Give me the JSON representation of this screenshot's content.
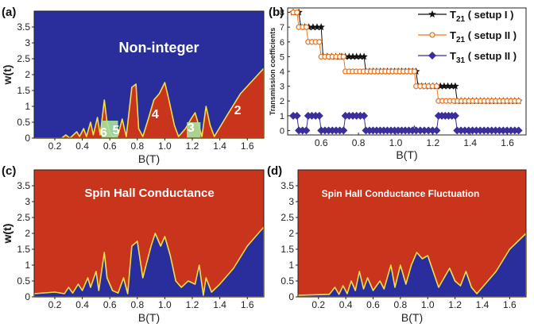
{
  "colors": {
    "blue": "#2a2e9c",
    "red": "#c9341c",
    "green": "#a7e3a1",
    "yellow": "#f4df4a",
    "black": "#111111",
    "orange": "#f07820",
    "purple": "#3a2f9a"
  },
  "chart_data": [
    {
      "type": "heatmap",
      "panel_label": "(a)",
      "annotation": "Non-integer",
      "xlabel": "B(T)",
      "ylabel": "w(t)",
      "xlim": [
        0.05,
        1.72
      ],
      "ylim": [
        0,
        4.0
      ],
      "xticks": [
        "0.2",
        "0.4",
        "0.6",
        "0.8",
        "1.0",
        "1.2",
        "1.4",
        "1.6"
      ],
      "yticks": [
        "0",
        "0.5",
        "1",
        "1.5",
        "2",
        "2.5",
        "3",
        "3.5"
      ],
      "region_labels": [
        {
          "text": "6",
          "x": 0.555,
          "y": 0.2
        },
        {
          "text": "5",
          "x": 0.645,
          "y": 0.28
        },
        {
          "text": "4",
          "x": 0.93,
          "y": 0.78
        },
        {
          "text": "3",
          "x": 1.19,
          "y": 0.35
        },
        {
          "text": "2",
          "x": 1.53,
          "y": 0.9
        }
      ],
      "boundary": [
        [
          0.05,
          0
        ],
        [
          0.25,
          0
        ],
        [
          0.28,
          0.1
        ],
        [
          0.31,
          0
        ],
        [
          0.36,
          0.2
        ],
        [
          0.38,
          0.05
        ],
        [
          0.41,
          0.3
        ],
        [
          0.43,
          0.05
        ],
        [
          0.46,
          0.5
        ],
        [
          0.48,
          0.1
        ],
        [
          0.51,
          0.65
        ],
        [
          0.53,
          0.1
        ],
        [
          0.56,
          1.2
        ],
        [
          0.58,
          0.5
        ],
        [
          0.6,
          0.2
        ],
        [
          0.62,
          0.05
        ],
        [
          0.66,
          0.1
        ],
        [
          0.69,
          0.6
        ],
        [
          0.72,
          0.05
        ],
        [
          0.76,
          1.6
        ],
        [
          0.79,
          1.7
        ],
        [
          0.81,
          0.3
        ],
        [
          0.84,
          0.05
        ],
        [
          0.88,
          0.6
        ],
        [
          0.92,
          1.2
        ],
        [
          0.96,
          1.4
        ],
        [
          1.0,
          1.75
        ],
        [
          1.03,
          1.2
        ],
        [
          1.07,
          0.4
        ],
        [
          1.1,
          0.05
        ],
        [
          1.15,
          0.3
        ],
        [
          1.19,
          0.6
        ],
        [
          1.22,
          0.8
        ],
        [
          1.27,
          0.05
        ],
        [
          1.3,
          1.0
        ],
        [
          1.33,
          0.4
        ],
        [
          1.36,
          0.05
        ],
        [
          1.45,
          0.7
        ],
        [
          1.55,
          1.4
        ],
        [
          1.72,
          2.2
        ]
      ]
    },
    {
      "type": "line",
      "panel_label": "(b)",
      "xlabel": "B(T)",
      "ylabel": "Transmission coefficients",
      "xlim": [
        0.42,
        1.7
      ],
      "ylim": [
        -0.3,
        8.3
      ],
      "xticks": [
        "0.6",
        "0.8",
        "1.0",
        "1.2",
        "1.4",
        "1.6"
      ],
      "yticks": [
        "0",
        "1",
        "2",
        "3",
        "4",
        "5",
        "6",
        "7",
        "8"
      ],
      "legend_position": "top-right",
      "series": [
        {
          "name": "T21 ( setup I )",
          "marker": "star",
          "color": "#111111",
          "steps": [
            [
              0.45,
              8
            ],
            [
              0.48,
              8
            ],
            [
              0.49,
              7
            ],
            [
              0.6,
              7
            ],
            [
              0.61,
              5
            ],
            [
              0.7,
              5
            ],
            [
              0.71,
              5
            ],
            [
              0.83,
              5
            ],
            [
              0.84,
              4
            ],
            [
              1.11,
              4
            ],
            [
              1.12,
              3
            ],
            [
              1.32,
              3
            ],
            [
              1.33,
              2
            ],
            [
              1.66,
              2
            ]
          ]
        },
        {
          "name": "T21 ( setup II )",
          "marker": "circle",
          "color": "#f07820",
          "steps": [
            [
              0.45,
              8
            ],
            [
              0.47,
              8
            ],
            [
              0.48,
              7
            ],
            [
              0.52,
              7
            ],
            [
              0.53,
              6
            ],
            [
              0.59,
              6
            ],
            [
              0.6,
              5
            ],
            [
              0.72,
              5
            ],
            [
              0.73,
              4
            ],
            [
              1.1,
              4
            ],
            [
              1.11,
              3
            ],
            [
              1.22,
              3
            ],
            [
              1.23,
              2
            ],
            [
              1.66,
              2
            ]
          ]
        },
        {
          "name": "T31 ( setup II )",
          "marker": "diamond",
          "color": "#3a2f9a",
          "steps": [
            [
              0.45,
              1
            ],
            [
              0.47,
              1
            ],
            [
              0.48,
              0
            ],
            [
              0.52,
              0
            ],
            [
              0.53,
              1
            ],
            [
              0.59,
              1
            ],
            [
              0.6,
              0
            ],
            [
              0.72,
              0
            ],
            [
              0.73,
              1
            ],
            [
              0.83,
              1
            ],
            [
              0.84,
              0
            ],
            [
              1.09,
              0
            ],
            [
              1.1,
              0.3
            ],
            [
              1.11,
              0
            ],
            [
              1.22,
              0
            ],
            [
              1.23,
              1
            ],
            [
              1.32,
              1
            ],
            [
              1.33,
              0
            ],
            [
              1.66,
              0
            ]
          ]
        }
      ]
    },
    {
      "type": "heatmap",
      "panel_label": "(c)",
      "annotation": "Spin Hall Conductance",
      "xlabel": "B(T)",
      "ylabel": "w(t)",
      "xlim": [
        0.05,
        1.72
      ],
      "ylim": [
        0,
        4.0
      ],
      "xticks": [
        "0.2",
        "0.4",
        "0.6",
        "0.8",
        "1.0",
        "1.2",
        "1.4",
        "1.6"
      ],
      "yticks": [
        "0",
        "0.5",
        "1",
        "1.5",
        "2",
        "2.5",
        "3",
        "3.5"
      ],
      "boundary": [
        [
          0.05,
          0.1
        ],
        [
          0.2,
          0.15
        ],
        [
          0.27,
          0.1
        ],
        [
          0.3,
          0.3
        ],
        [
          0.33,
          0.12
        ],
        [
          0.37,
          0.4
        ],
        [
          0.4,
          0.2
        ],
        [
          0.44,
          0.6
        ],
        [
          0.46,
          0.3
        ],
        [
          0.5,
          0.8
        ],
        [
          0.52,
          0.2
        ],
        [
          0.56,
          1.4
        ],
        [
          0.58,
          0.6
        ],
        [
          0.62,
          0.2
        ],
        [
          0.66,
          0.12
        ],
        [
          0.7,
          0.6
        ],
        [
          0.73,
          0.1
        ],
        [
          0.76,
          1.6
        ],
        [
          0.8,
          1.75
        ],
        [
          0.84,
          0.6
        ],
        [
          0.87,
          1.1
        ],
        [
          0.9,
          1.6
        ],
        [
          0.93,
          2.0
        ],
        [
          0.97,
          1.6
        ],
        [
          1.0,
          1.9
        ],
        [
          1.04,
          1.3
        ],
        [
          1.08,
          0.5
        ],
        [
          1.12,
          0.3
        ],
        [
          1.17,
          0.5
        ],
        [
          1.22,
          0.4
        ],
        [
          1.25,
          1.0
        ],
        [
          1.28,
          0.05
        ],
        [
          1.3,
          0.6
        ],
        [
          1.34,
          0.15
        ],
        [
          1.4,
          0.4
        ],
        [
          1.5,
          0.9
        ],
        [
          1.6,
          1.6
        ],
        [
          1.72,
          2.2
        ]
      ]
    },
    {
      "type": "heatmap",
      "panel_label": "(d)",
      "annotation": "Spin Hall Conductance Fluctuation",
      "xlabel": "B(T)",
      "ylabel": "w(t)",
      "xlim": [
        0.05,
        1.72
      ],
      "ylim": [
        0,
        4.0
      ],
      "xticks": [
        "0.2",
        "0.4",
        "0.6",
        "0.8",
        "1.0",
        "1.2",
        "1.4",
        "1.6"
      ],
      "yticks": [
        "0",
        "0.5",
        "1",
        "1.5",
        "2",
        "2.5",
        "3",
        "3.5"
      ],
      "boundary": [
        [
          0.05,
          0.05
        ],
        [
          0.28,
          0.08
        ],
        [
          0.32,
          0.3
        ],
        [
          0.35,
          0.08
        ],
        [
          0.38,
          0.35
        ],
        [
          0.41,
          0.1
        ],
        [
          0.44,
          0.5
        ],
        [
          0.47,
          0.2
        ],
        [
          0.5,
          0.8
        ],
        [
          0.53,
          0.25
        ],
        [
          0.56,
          0.6
        ],
        [
          0.6,
          0.2
        ],
        [
          0.65,
          0.5
        ],
        [
          0.68,
          0.25
        ],
        [
          0.73,
          1.0
        ],
        [
          0.76,
          0.3
        ],
        [
          0.8,
          1.0
        ],
        [
          0.84,
          0.4
        ],
        [
          0.88,
          1.0
        ],
        [
          0.92,
          1.4
        ],
        [
          0.96,
          1.2
        ],
        [
          1.0,
          1.3
        ],
        [
          1.04,
          0.8
        ],
        [
          1.08,
          0.3
        ],
        [
          1.12,
          0.6
        ],
        [
          1.16,
          0.9
        ],
        [
          1.2,
          0.5
        ],
        [
          1.24,
          0.35
        ],
        [
          1.28,
          0.8
        ],
        [
          1.32,
          0.3
        ],
        [
          1.36,
          0.1
        ],
        [
          1.4,
          0.3
        ],
        [
          1.5,
          0.8
        ],
        [
          1.6,
          1.5
        ],
        [
          1.72,
          2.0
        ]
      ]
    }
  ]
}
